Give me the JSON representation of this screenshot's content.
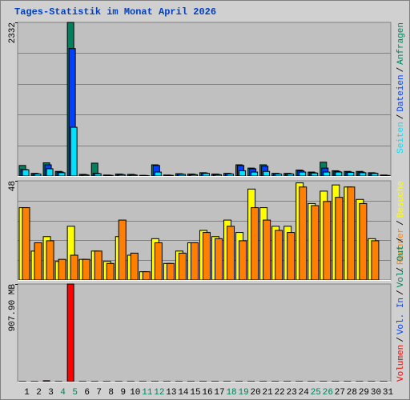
{
  "title": "Tages-Statistik im Monat April 2026",
  "legend_separator": "/",
  "chart_data": [
    {
      "type": "bar",
      "ylim": [
        0,
        2332
      ],
      "yticks": [
        2332
      ],
      "legend_reversed": true,
      "series": [
        {
          "name": "Anfragen",
          "color": "#00805c",
          "values": [
            160,
            40,
            200,
            70,
            2332,
            25,
            195,
            15,
            30,
            25,
            10,
            170,
            15,
            35,
            30,
            50,
            30,
            40,
            170,
            120,
            170,
            40,
            40,
            90,
            60,
            210,
            80,
            70,
            70,
            50,
            15
          ]
        },
        {
          "name": "Dateien",
          "color": "#0040ff",
          "values": [
            100,
            35,
            170,
            60,
            1935,
            20,
            40,
            12,
            25,
            20,
            8,
            160,
            12,
            30,
            25,
            45,
            25,
            35,
            160,
            110,
            150,
            35,
            35,
            80,
            50,
            120,
            70,
            60,
            60,
            45,
            10
          ]
        },
        {
          "name": "Seiten",
          "color": "#00e0ff",
          "values": [
            95,
            30,
            110,
            50,
            740,
            15,
            35,
            10,
            20,
            15,
            5,
            60,
            10,
            25,
            20,
            40,
            20,
            30,
            80,
            60,
            70,
            30,
            30,
            60,
            45,
            60,
            60,
            55,
            50,
            40,
            8
          ]
        }
      ]
    },
    {
      "type": "bar",
      "ylim": [
        0,
        48
      ],
      "yticks": [
        48
      ],
      "legend_reversed": true,
      "series": [
        {
          "name": "Besuche",
          "color": "#ffff00",
          "values": [
            35,
            14,
            21,
            9,
            26,
            10,
            14,
            9,
            21,
            12,
            4,
            20,
            8,
            14,
            18,
            24,
            21,
            29,
            23,
            44,
            35,
            26,
            26,
            47,
            37,
            43,
            46,
            45,
            39,
            20,
            0
          ]
        },
        {
          "name": "Rechner",
          "color": "#ff8000",
          "values": [
            35,
            18,
            19,
            10,
            12,
            10,
            14,
            8,
            29,
            13,
            4,
            18,
            8,
            13,
            18,
            23,
            20,
            26,
            19,
            35,
            29,
            24,
            23,
            45,
            36,
            38,
            40,
            45,
            37,
            19,
            0
          ]
        }
      ]
    },
    {
      "type": "bar",
      "ylim": [
        0,
        907.9
      ],
      "yticks": [
        {
          "value": 907.9,
          "label": "907.90 MB"
        }
      ],
      "legend_reversed": false,
      "categories": [
        "1",
        "2",
        "3",
        "4",
        "5",
        "6",
        "7",
        "8",
        "9",
        "10",
        "11",
        "12",
        "13",
        "14",
        "15",
        "16",
        "17",
        "18",
        "19",
        "20",
        "21",
        "22",
        "23",
        "24",
        "25",
        "26",
        "27",
        "28",
        "29",
        "30",
        "31"
      ],
      "category_colors": [
        "#000000",
        "#000000",
        "#000000",
        "#00805c",
        "#00805c",
        "#000000",
        "#000000",
        "#000000",
        "#000000",
        "#000000",
        "#00805c",
        "#00805c",
        "#000000",
        "#000000",
        "#000000",
        "#000000",
        "#000000",
        "#00805c",
        "#00805c",
        "#000000",
        "#000000",
        "#000000",
        "#000000",
        "#000000",
        "#00805c",
        "#00805c",
        "#000000",
        "#000000",
        "#000000",
        "#000000",
        "#000000"
      ],
      "series": [
        {
          "name": "Volumen",
          "color": "#ff0000",
          "values": [
            2,
            2,
            8,
            2,
            907.9,
            2,
            2,
            2,
            2,
            2,
            2,
            2,
            2,
            2,
            2,
            2,
            2,
            2,
            2,
            2,
            2,
            2,
            2,
            2,
            2,
            2,
            2,
            2,
            2,
            2,
            2
          ]
        },
        {
          "name": "Vol. In",
          "color": "#0040ff",
          "values": [
            0,
            0,
            0,
            0,
            0,
            0,
            0,
            0,
            0,
            0,
            0,
            0,
            0,
            0,
            0,
            0,
            0,
            0,
            0,
            0,
            0,
            0,
            0,
            0,
            0,
            0,
            0,
            0,
            0,
            0,
            0
          ]
        },
        {
          "name": "Vol. Out",
          "color": "#00805c",
          "values": [
            0,
            0,
            0,
            0,
            0,
            0,
            0,
            0,
            0,
            0,
            0,
            0,
            0,
            0,
            0,
            0,
            0,
            0,
            0,
            0,
            0,
            0,
            0,
            0,
            0,
            0,
            0,
            0,
            0,
            0,
            0
          ]
        }
      ]
    }
  ]
}
